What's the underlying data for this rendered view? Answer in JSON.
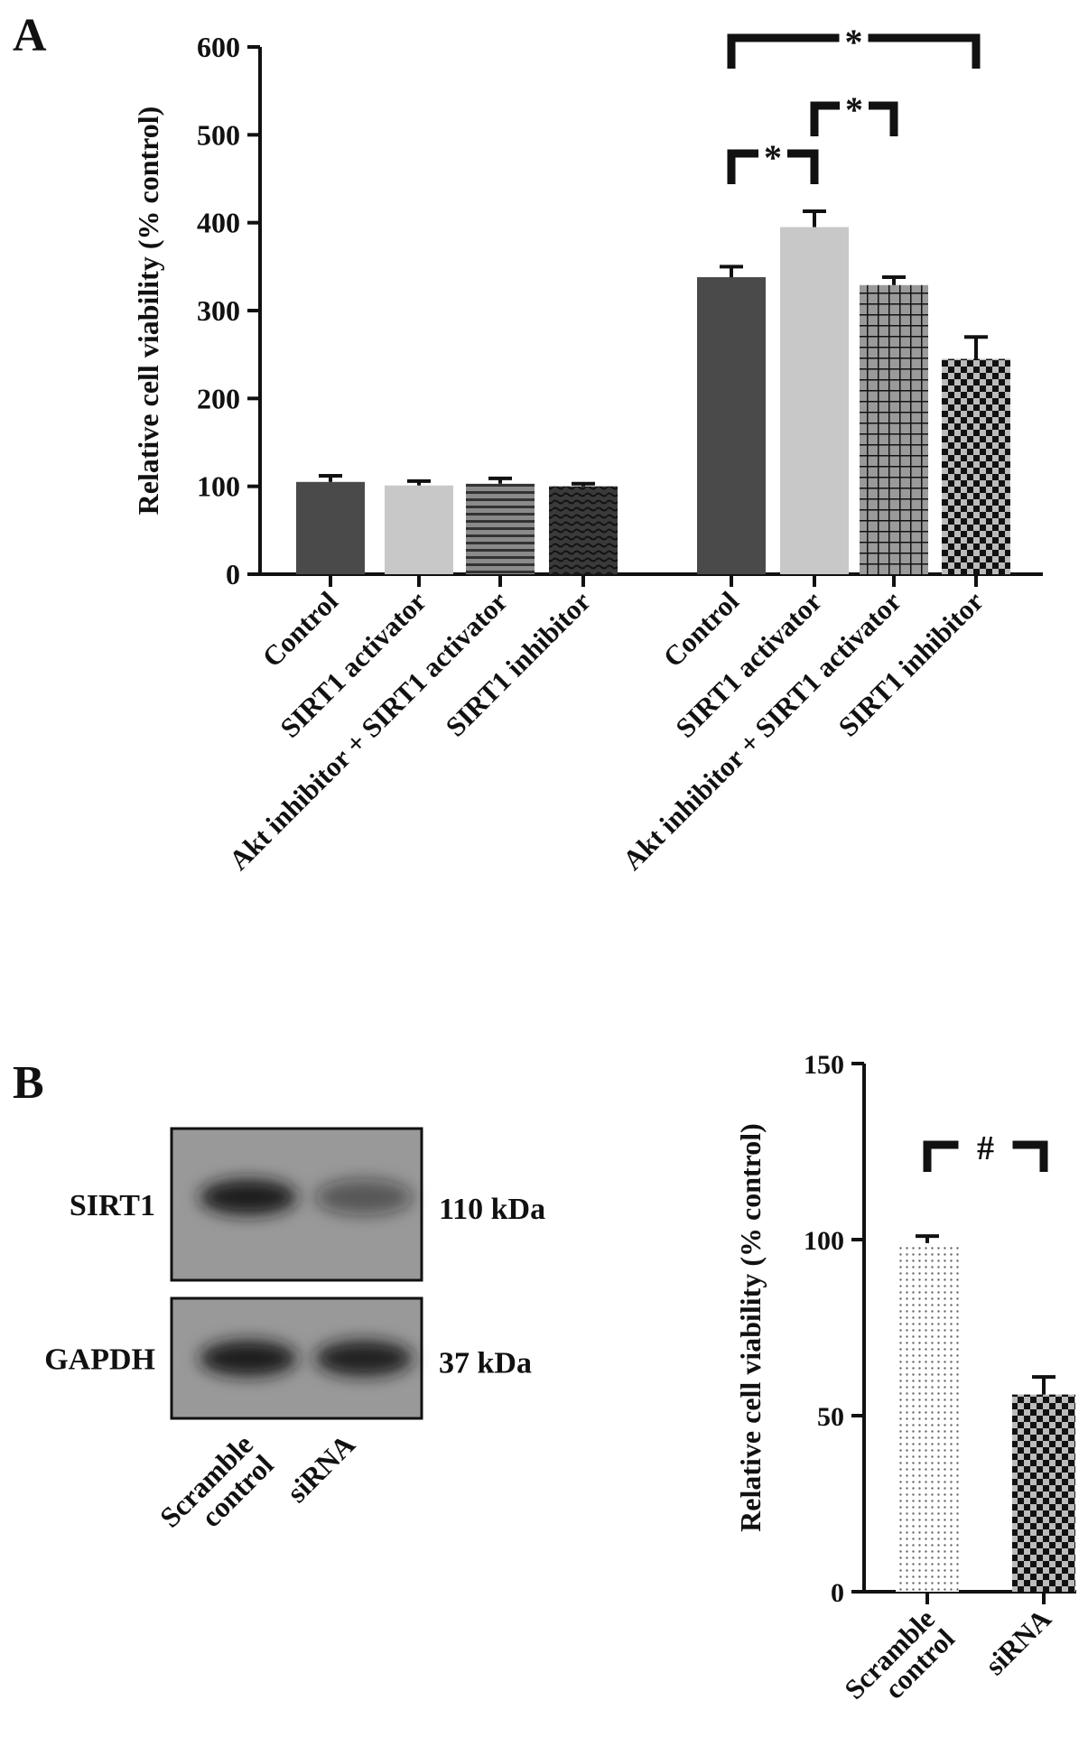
{
  "chart_data": [
    {
      "panel": "A",
      "type": "bar",
      "ylabel": "Relative cell viability (% control)",
      "ylim": [
        0,
        600
      ],
      "yticks": [
        0,
        100,
        200,
        300,
        400,
        500,
        600
      ],
      "categories": [
        "Control",
        "SIRT1 activator",
        "Akt inhibitor + SIRT1 activator",
        "SIRT1 inhibitor",
        "Control",
        "SIRT1 activator",
        "Akt inhibitor + SIRT1 activator",
        "SIRT1 inhibitor"
      ],
      "values": [
        105,
        101,
        103,
        100,
        338,
        395,
        329,
        245
      ],
      "errors": [
        7,
        5,
        6,
        3,
        12,
        18,
        9,
        25
      ],
      "fills": [
        "#4a4a4a",
        "#c8c8c8",
        "hstripe",
        "wave",
        "#4a4a4a",
        "#c8c8c8",
        "grid",
        "checker"
      ],
      "significance": [
        {
          "from": 4,
          "to": 7,
          "label": "*"
        },
        {
          "from": 5,
          "to": 6,
          "label": "*"
        },
        {
          "from": 4,
          "to": 5,
          "label": "*"
        }
      ]
    },
    {
      "panel": "B",
      "type": "bar",
      "ylabel": "Relative cell viability (% control)",
      "ylim": [
        0,
        150
      ],
      "yticks": [
        0,
        50,
        100,
        150
      ],
      "categories": [
        "Scramble control",
        "siRNA"
      ],
      "values": [
        99,
        56
      ],
      "errors": [
        2,
        5
      ],
      "fills": [
        "dots",
        "checker"
      ],
      "significance": [
        {
          "from": 0,
          "to": 1,
          "label": "#"
        }
      ]
    }
  ],
  "blot": {
    "rows": [
      {
        "protein": "SIRT1",
        "size": "110 kDa",
        "intensities": [
          0.95,
          0.5
        ]
      },
      {
        "protein": "GAPDH",
        "size": "37 kDa",
        "intensities": [
          0.95,
          0.92
        ]
      }
    ],
    "lanes": [
      "Scramble control",
      "siRNA"
    ]
  },
  "panel_labels": [
    "A",
    "B"
  ]
}
